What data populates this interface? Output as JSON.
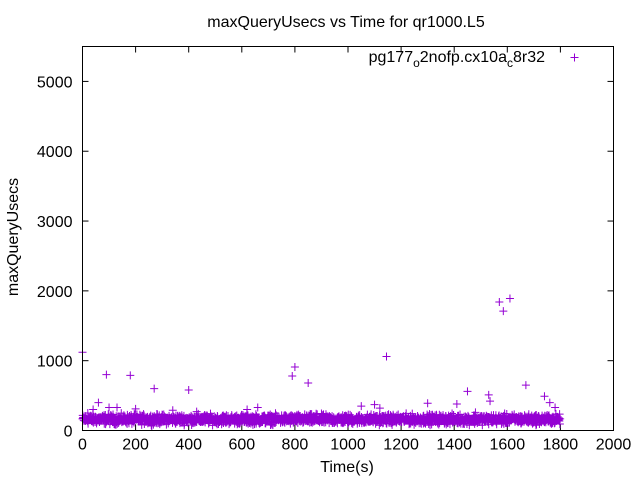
{
  "chart_data": {
    "type": "scatter",
    "title": "maxQueryUsecs vs Time for qr1000.L5",
    "xlabel": "Time(s)",
    "ylabel": "maxQueryUsecs",
    "xlim": [
      0,
      2000
    ],
    "ylim": [
      0,
      5500
    ],
    "xticks": [
      0,
      200,
      400,
      600,
      800,
      1000,
      1200,
      1400,
      1600,
      1800,
      2000
    ],
    "yticks": [
      0,
      1000,
      2000,
      3000,
      4000,
      5000
    ],
    "grid": false,
    "legend_position": "top-right",
    "series": [
      {
        "name": "pg177_o2nofp.cx10a_c8r32",
        "color": "#9400d3",
        "marker": "plus",
        "dense_band": {
          "x_range": [
            0,
            1800
          ],
          "y_range": [
            60,
            260
          ],
          "count": 1800
        },
        "points": [
          [
            0,
            1120
          ],
          [
            20,
            250
          ],
          [
            40,
            300
          ],
          [
            60,
            400
          ],
          [
            90,
            800
          ],
          [
            100,
            330
          ],
          [
            130,
            330
          ],
          [
            180,
            790
          ],
          [
            200,
            310
          ],
          [
            270,
            600
          ],
          [
            340,
            290
          ],
          [
            400,
            580
          ],
          [
            430,
            270
          ],
          [
            620,
            300
          ],
          [
            660,
            330
          ],
          [
            790,
            780
          ],
          [
            800,
            910
          ],
          [
            850,
            680
          ],
          [
            880,
            240
          ],
          [
            1050,
            350
          ],
          [
            1100,
            370
          ],
          [
            1120,
            320
          ],
          [
            1145,
            1060
          ],
          [
            1300,
            390
          ],
          [
            1410,
            380
          ],
          [
            1450,
            560
          ],
          [
            1480,
            260
          ],
          [
            1530,
            510
          ],
          [
            1535,
            420
          ],
          [
            1570,
            1840
          ],
          [
            1585,
            1710
          ],
          [
            1610,
            1890
          ],
          [
            1670,
            650
          ],
          [
            1740,
            490
          ],
          [
            1760,
            400
          ],
          [
            1780,
            330
          ]
        ]
      }
    ]
  }
}
